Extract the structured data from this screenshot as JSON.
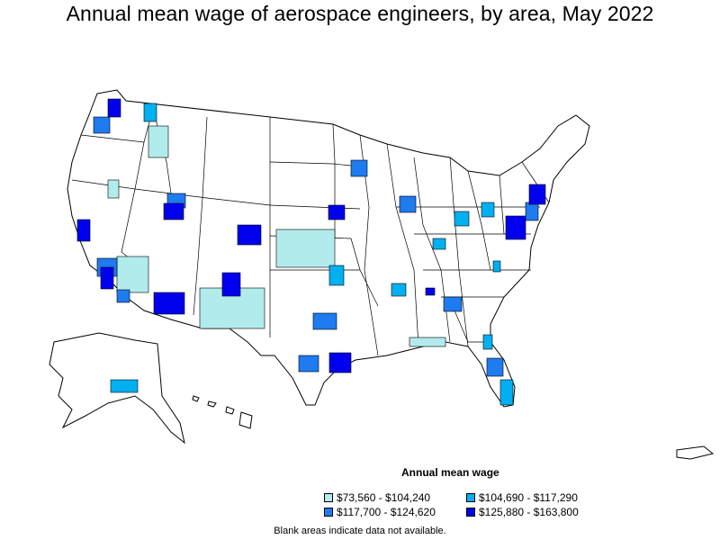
{
  "title": "Annual mean wage of aerospace engineers, by area, May 2022",
  "legend": {
    "title": "Annual mean wage",
    "items": [
      {
        "label": "$73,560 - $104,240",
        "color": "#b2ebeb"
      },
      {
        "label": "$104,690 - $117,290",
        "color": "#00b0f0"
      },
      {
        "label": "$117,700 - $124,620",
        "color": "#1e7bf0"
      },
      {
        "label": "$125,880 - $163,800",
        "color": "#0000ee"
      }
    ]
  },
  "note": "Blank areas indicate data not available.",
  "colors": {
    "boundary": "#000000",
    "background": "#ffffff"
  }
}
